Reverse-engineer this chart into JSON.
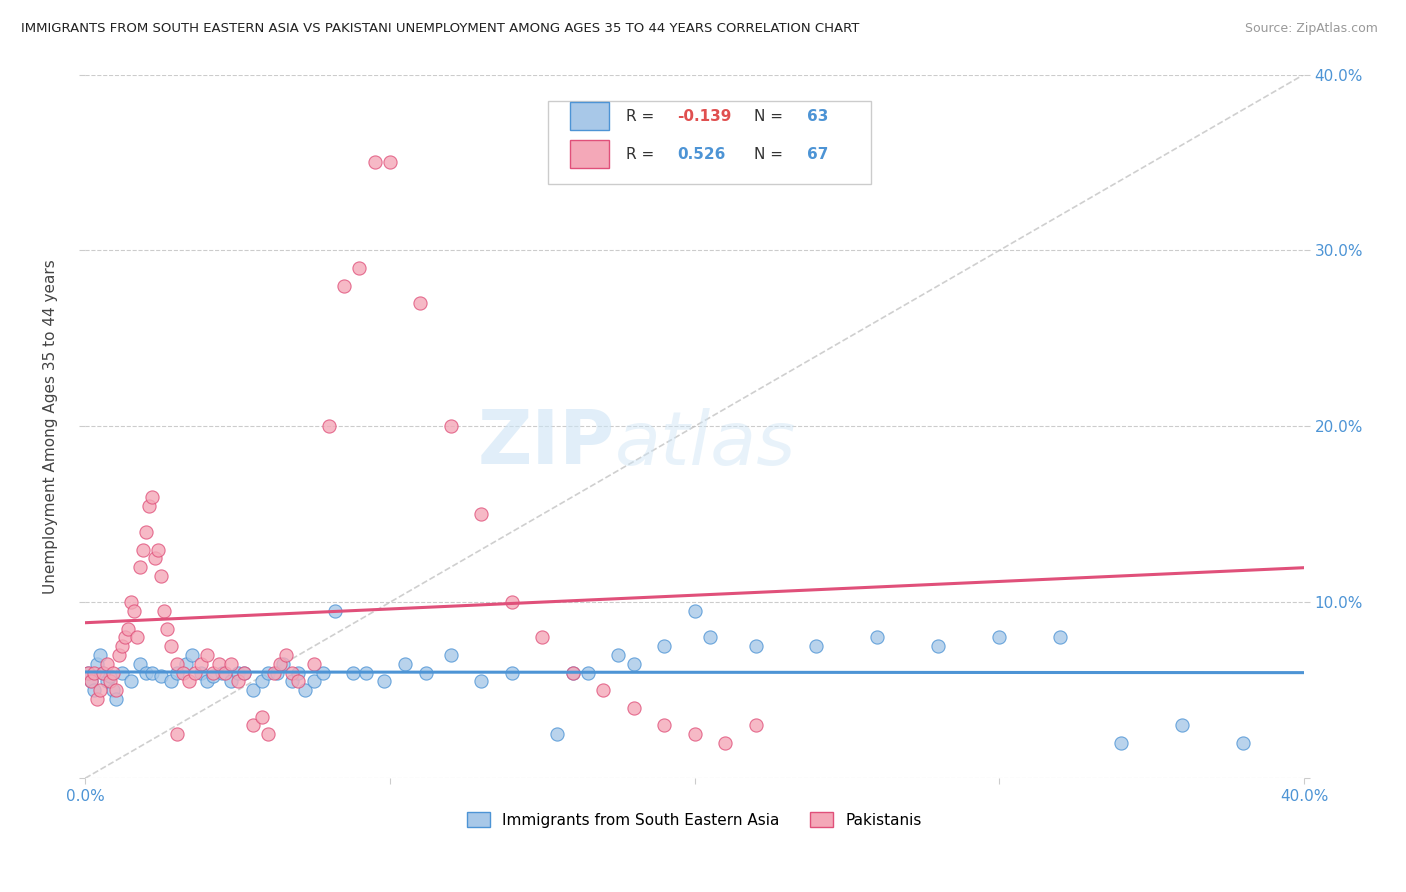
{
  "title": "IMMIGRANTS FROM SOUTH EASTERN ASIA VS PAKISTANI UNEMPLOYMENT AMONG AGES 35 TO 44 YEARS CORRELATION CHART",
  "source": "Source: ZipAtlas.com",
  "ylabel": "Unemployment Among Ages 35 to 44 years",
  "legend_label1": "Immigrants from South Eastern Asia",
  "legend_label2": "Pakistanis",
  "r1": "-0.139",
  "n1": "63",
  "r2": "0.526",
  "n2": "67",
  "xlim": [
    0.0,
    0.4
  ],
  "ylim": [
    0.0,
    0.4
  ],
  "color_blue": "#a8c8e8",
  "color_pink": "#f4a8b8",
  "color_blue_line": "#4d94d5",
  "color_pink_line": "#e0507a",
  "color_diag": "#bbbbbb",
  "blue_x": [
    0.001,
    0.002,
    0.003,
    0.004,
    0.005,
    0.006,
    0.007,
    0.008,
    0.009,
    0.01,
    0.012,
    0.015,
    0.018,
    0.02,
    0.022,
    0.025,
    0.028,
    0.03,
    0.033,
    0.035,
    0.038,
    0.04,
    0.042,
    0.045,
    0.048,
    0.05,
    0.052,
    0.055,
    0.058,
    0.06,
    0.063,
    0.065,
    0.068,
    0.07,
    0.072,
    0.075,
    0.078,
    0.082,
    0.088,
    0.092,
    0.098,
    0.105,
    0.112,
    0.12,
    0.13,
    0.14,
    0.155,
    0.165,
    0.175,
    0.19,
    0.205,
    0.22,
    0.24,
    0.26,
    0.28,
    0.3,
    0.32,
    0.34,
    0.36,
    0.38,
    0.16,
    0.18,
    0.2
  ],
  "blue_y": [
    0.06,
    0.055,
    0.05,
    0.065,
    0.07,
    0.06,
    0.055,
    0.058,
    0.05,
    0.045,
    0.06,
    0.055,
    0.065,
    0.06,
    0.06,
    0.058,
    0.055,
    0.06,
    0.065,
    0.07,
    0.06,
    0.055,
    0.058,
    0.06,
    0.055,
    0.06,
    0.06,
    0.05,
    0.055,
    0.06,
    0.06,
    0.065,
    0.055,
    0.06,
    0.05,
    0.055,
    0.06,
    0.095,
    0.06,
    0.06,
    0.055,
    0.065,
    0.06,
    0.07,
    0.055,
    0.06,
    0.025,
    0.06,
    0.07,
    0.075,
    0.08,
    0.075,
    0.075,
    0.08,
    0.075,
    0.08,
    0.08,
    0.02,
    0.03,
    0.02,
    0.06,
    0.065,
    0.095
  ],
  "pink_x": [
    0.001,
    0.002,
    0.003,
    0.004,
    0.005,
    0.006,
    0.007,
    0.008,
    0.009,
    0.01,
    0.011,
    0.012,
    0.013,
    0.014,
    0.015,
    0.016,
    0.017,
    0.018,
    0.019,
    0.02,
    0.021,
    0.022,
    0.023,
    0.024,
    0.025,
    0.026,
    0.027,
    0.028,
    0.03,
    0.032,
    0.034,
    0.036,
    0.038,
    0.04,
    0.042,
    0.044,
    0.046,
    0.048,
    0.05,
    0.052,
    0.055,
    0.058,
    0.06,
    0.062,
    0.064,
    0.066,
    0.068,
    0.07,
    0.075,
    0.08,
    0.085,
    0.09,
    0.095,
    0.1,
    0.11,
    0.12,
    0.13,
    0.14,
    0.15,
    0.16,
    0.17,
    0.18,
    0.19,
    0.2,
    0.21,
    0.22,
    0.03
  ],
  "pink_y": [
    0.06,
    0.055,
    0.06,
    0.045,
    0.05,
    0.06,
    0.065,
    0.055,
    0.06,
    0.05,
    0.07,
    0.075,
    0.08,
    0.085,
    0.1,
    0.095,
    0.08,
    0.12,
    0.13,
    0.14,
    0.155,
    0.16,
    0.125,
    0.13,
    0.115,
    0.095,
    0.085,
    0.075,
    0.065,
    0.06,
    0.055,
    0.06,
    0.065,
    0.07,
    0.06,
    0.065,
    0.06,
    0.065,
    0.055,
    0.06,
    0.03,
    0.035,
    0.025,
    0.06,
    0.065,
    0.07,
    0.06,
    0.055,
    0.065,
    0.2,
    0.28,
    0.29,
    0.35,
    0.35,
    0.27,
    0.2,
    0.15,
    0.1,
    0.08,
    0.06,
    0.05,
    0.04,
    0.03,
    0.025,
    0.02,
    0.03,
    0.025
  ]
}
